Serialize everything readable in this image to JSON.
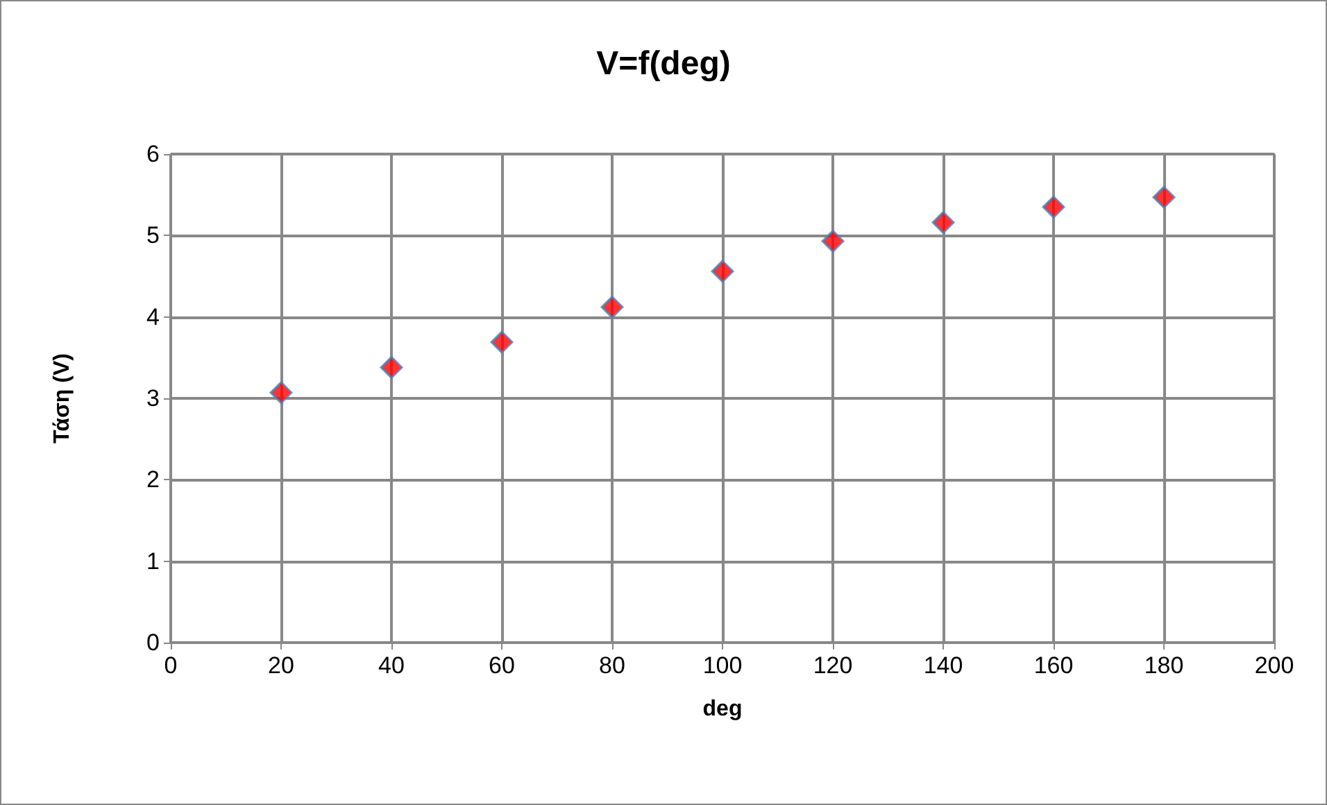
{
  "chart_data": {
    "type": "scatter",
    "title": "V=f(deg)",
    "xlabel": "deg",
    "ylabel": "Τάση (V)",
    "x": [
      20,
      40,
      60,
      80,
      100,
      120,
      140,
      160,
      180
    ],
    "series": [
      {
        "color": "#ff0000",
        "values": [
          3.07,
          3.38,
          3.69,
          4.12,
          4.56,
          4.93,
          5.16,
          5.35,
          5.47
        ]
      }
    ],
    "xlim": [
      0,
      200
    ],
    "xticks": [
      0,
      20,
      40,
      60,
      80,
      100,
      120,
      140,
      160,
      180,
      200
    ],
    "ylim": [
      0,
      6
    ],
    "yticks": [
      0,
      1,
      2,
      3,
      4,
      5,
      6
    ],
    "grid": true,
    "marker": "diamond"
  }
}
